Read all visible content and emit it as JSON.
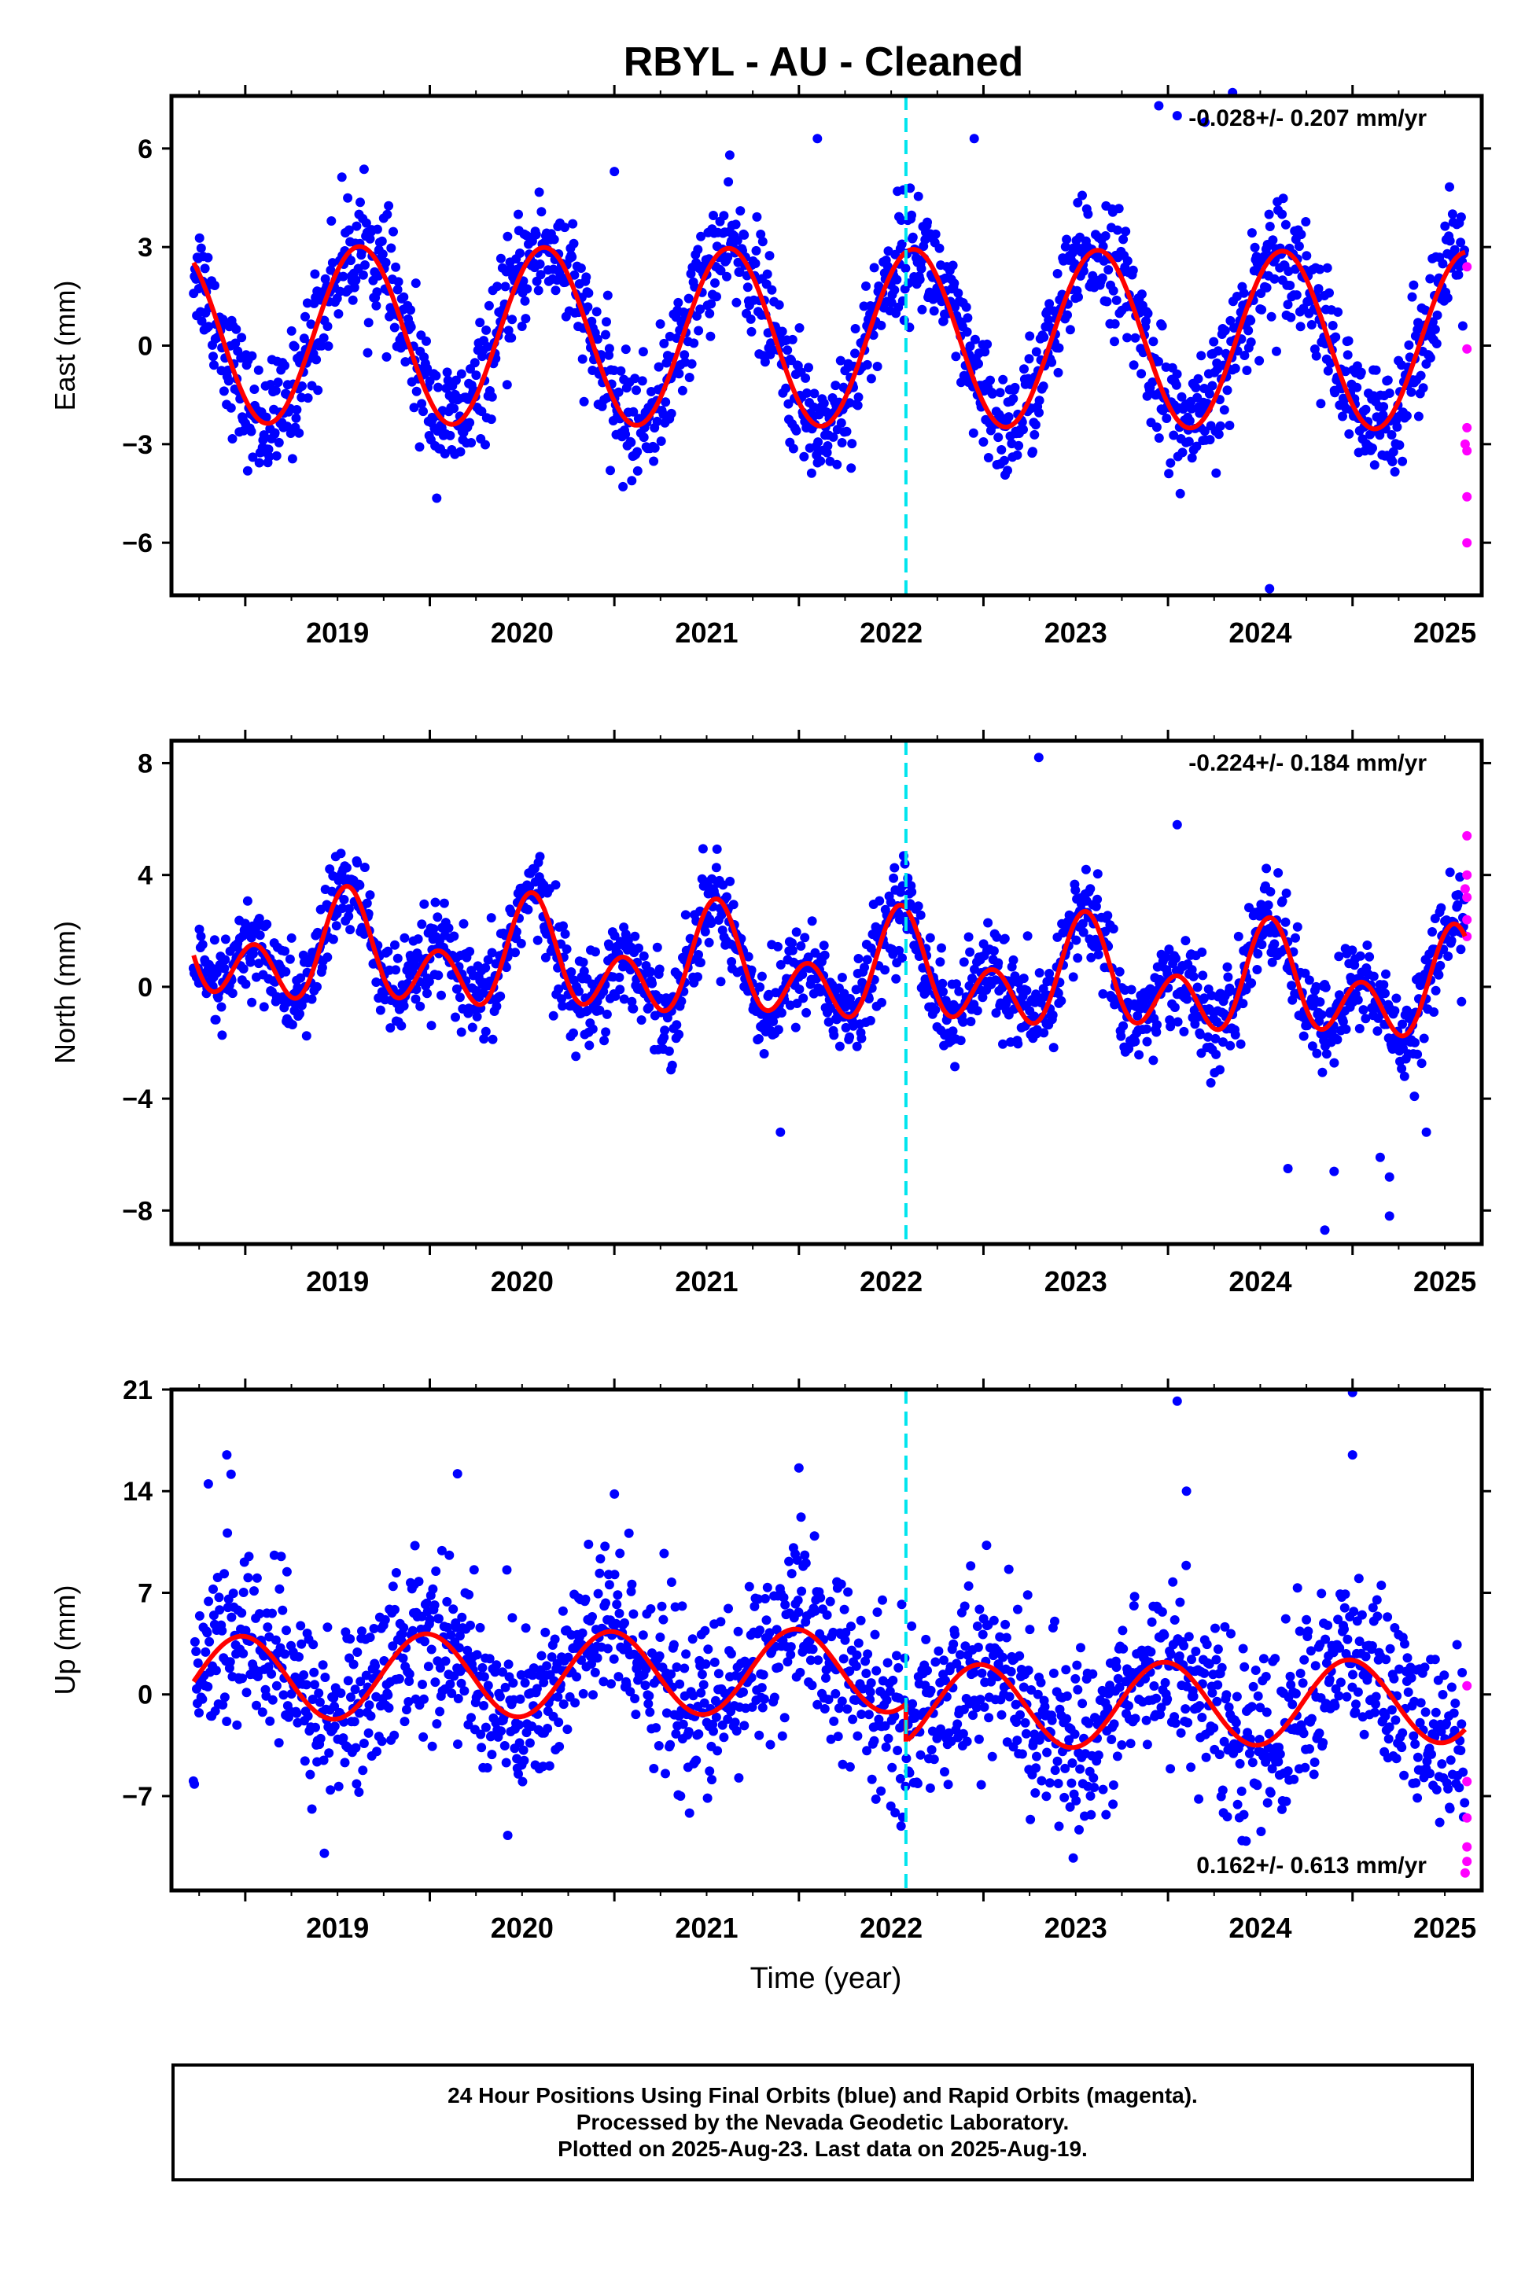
{
  "title": "RBYL  - AU - Cleaned",
  "xlabel": "Time (year)",
  "footer": {
    "line1": "24 Hour Positions Using Final Orbits (blue) and Rapid Orbits (magenta).",
    "line2": "Processed by the Nevada Geodetic Laboratory.",
    "line3": "Plotted on 2025-Aug-23. Last data on 2025-Aug-19."
  },
  "colors": {
    "final": "#0000ff",
    "rapid": "#ff00ff",
    "model": "#ff0000",
    "offset": "#00e5ee"
  },
  "chart_data": [
    {
      "type": "scatter",
      "ylabel": "East (mm)",
      "rate": "-0.028+/- 0.207 mm/yr",
      "xlim": [
        2018.6,
        2025.7
      ],
      "ylim": [
        -7.6,
        7.6
      ],
      "yticks": [
        -6,
        -3,
        0,
        3,
        6
      ],
      "xticks": [
        2019,
        2020,
        2021,
        2022,
        2023,
        2024,
        2025
      ],
      "offset_line": 2022.58,
      "model": {
        "amp": 2.7,
        "phase": 0.62,
        "semi_amp": 0.0,
        "semi_phase": 0.0,
        "step": 0.0,
        "mean": 0.25,
        "trend": -0.028
      },
      "scatter_sd": 0.9,
      "outliers": [
        [
          2023.95,
          7.3
        ],
        [
          2024.05,
          7.0
        ],
        [
          2024.2,
          6.8
        ],
        [
          2024.35,
          7.7
        ],
        [
          2024.55,
          -7.4
        ],
        [
          2022.1,
          6.3
        ],
        [
          2022.95,
          6.3
        ],
        [
          2021.0,
          5.3
        ]
      ],
      "rapid": [
        [
          2025.62,
          2.4
        ],
        [
          2025.62,
          -0.1
        ],
        [
          2025.62,
          -2.5
        ],
        [
          2025.62,
          -3.2
        ],
        [
          2025.62,
          -4.6
        ],
        [
          2025.62,
          -6.0
        ],
        [
          2025.61,
          -3.0
        ]
      ]
    },
    {
      "type": "scatter",
      "ylabel": "North (mm)",
      "rate": "-0.224+/- 0.184 mm/yr",
      "xlim": [
        2018.6,
        2025.7
      ],
      "ylim": [
        -9.2,
        8.8
      ],
      "yticks": [
        -8,
        -4,
        0,
        4,
        8
      ],
      "xticks": [
        2019,
        2020,
        2021,
        2022,
        2023,
        2024,
        2025
      ],
      "offset_line": 2022.58,
      "model": {
        "amp": 1.1,
        "phase": 0.56,
        "semi_amp": 1.4,
        "semi_phase": 0.05,
        "step": 0.0,
        "mean": 0.55,
        "trend": -0.224
      },
      "scatter_sd": 0.85,
      "outliers": [
        [
          2023.3,
          8.2
        ],
        [
          2024.05,
          5.8
        ],
        [
          2024.65,
          -6.5
        ],
        [
          2024.9,
          -6.6
        ],
        [
          2024.85,
          -8.7
        ],
        [
          2025.15,
          -6.1
        ],
        [
          2025.2,
          -8.2
        ],
        [
          2025.2,
          -6.8
        ],
        [
          2025.4,
          -5.2
        ],
        [
          2021.9,
          -5.2
        ]
      ],
      "rapid": [
        [
          2025.62,
          5.4
        ],
        [
          2025.62,
          4.0
        ],
        [
          2025.62,
          3.2
        ],
        [
          2025.62,
          2.4
        ],
        [
          2025.62,
          1.8
        ],
        [
          2025.61,
          3.5
        ]
      ]
    },
    {
      "type": "scatter",
      "ylabel": "Up (mm)",
      "rate": "0.162+/- 0.613 mm/yr",
      "xlim": [
        2018.6,
        2025.7
      ],
      "ylim": [
        -13.5,
        21.0
      ],
      "yticks": [
        -7,
        0,
        7,
        14,
        21
      ],
      "xticks": [
        2019,
        2020,
        2021,
        2022,
        2023,
        2024,
        2025
      ],
      "offset_line": 2022.58,
      "model": {
        "amp": 2.9,
        "phase": 0.98,
        "semi_amp": 0.0,
        "semi_phase": 0.0,
        "step": -2.6,
        "mean": 1.6,
        "trend": 0.162
      },
      "scatter_sd": 3.0,
      "outliers": [
        [
          2018.9,
          16.5
        ],
        [
          2020.15,
          15.2
        ],
        [
          2021.0,
          13.8
        ],
        [
          2022.0,
          15.6
        ],
        [
          2024.05,
          20.2
        ],
        [
          2025.0,
          20.8
        ],
        [
          2025.0,
          16.5
        ],
        [
          2024.1,
          14.0
        ],
        [
          2018.8,
          14.5
        ]
      ],
      "rapid": [
        [
          2025.62,
          0.6
        ],
        [
          2025.62,
          -6.0
        ],
        [
          2025.62,
          -8.5
        ],
        [
          2025.62,
          -10.5
        ],
        [
          2025.62,
          -11.5
        ],
        [
          2025.61,
          -12.3
        ]
      ]
    }
  ]
}
